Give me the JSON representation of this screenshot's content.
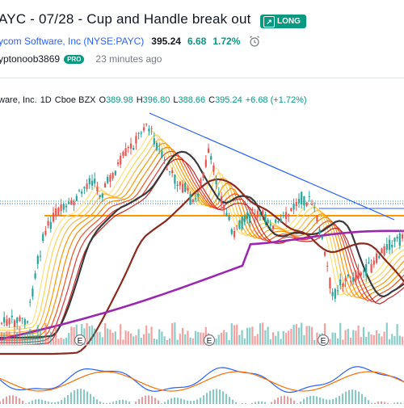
{
  "header": {
    "title": "AYC - 07/28 - Cup and Handle break out",
    "badge": "LONG",
    "symbol_name": "ycom Software, Inc (NYSE:PAYC)",
    "price": "395.24",
    "change": "6.68",
    "change_pct": "1.72%",
    "author": "yptonoob3869",
    "author_badge": "PRO",
    "posted": "23 minutes ago"
  },
  "legend": {
    "symbol": "ware, Inc.",
    "interval": "1D",
    "exchange": "Cboe BZX",
    "o_label": "O",
    "o": "389.98",
    "h_label": "H",
    "h": "396.80",
    "l_label": "L",
    "l": "388.66",
    "c_label": "C",
    "c": "395.24",
    "chg": "+6.68 (+1.72%)"
  },
  "earnings_markers": [
    "E",
    "E",
    "E"
  ],
  "colors": {
    "up": "#26a69a",
    "down": "#ef5350",
    "long": "#089981",
    "symbol_link": "#2962ff",
    "trendline": "#2962ff",
    "support": "#ff9800",
    "sma_slow": "#9c27b0"
  },
  "icons": {
    "badge": "arrow-up-right-icon",
    "alarm": "alarm-clock-icon"
  }
}
